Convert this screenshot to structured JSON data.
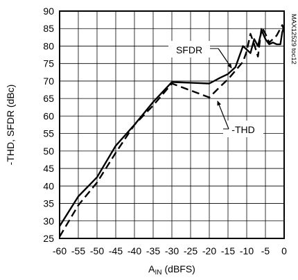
{
  "chart_data": {
    "type": "line",
    "title": "",
    "xlabel_main": "A",
    "xlabel_sub": "IN",
    "xlabel_unit": "(dBFS)",
    "ylabel": "-THD, SFDR (dBc)",
    "xlim": [
      -60,
      0
    ],
    "ylim": [
      25,
      90
    ],
    "xticks": [
      -60,
      -55,
      -50,
      -45,
      -40,
      -35,
      -30,
      -25,
      -20,
      -15,
      -10,
      -5,
      0
    ],
    "yticks": [
      25,
      30,
      35,
      40,
      45,
      50,
      55,
      60,
      65,
      70,
      75,
      80,
      85,
      90
    ],
    "grid": true,
    "legend": "none",
    "side_note": "MAX12529 toc12",
    "series": [
      {
        "name": "SFDR",
        "style": "solid",
        "x": [
          -60,
          -55,
          -50,
          -45,
          -40,
          -35,
          -30,
          -25,
          -20,
          -17,
          -15,
          -13,
          -11,
          -10,
          -9,
          -8,
          -7,
          -6,
          -5,
          -4,
          -3,
          -2,
          -1,
          -0.5,
          0
        ],
        "y": [
          28.5,
          37,
          42.5,
          51.5,
          57.5,
          64,
          69.7,
          69.5,
          69.3,
          71,
          72,
          74,
          80,
          79,
          78,
          82,
          80,
          84.5,
          82,
          80.5,
          81,
          80.5,
          80.5,
          84,
          85.5
        ]
      },
      {
        "name": "-THD",
        "style": "dashed",
        "x": [
          -60,
          -55,
          -50,
          -45,
          -40,
          -35,
          -30,
          -25,
          -20,
          -17,
          -15,
          -13,
          -11,
          -10,
          -9,
          -8,
          -7,
          -6,
          -5,
          -4,
          -3,
          -2,
          -1,
          -0.5,
          0
        ],
        "y": [
          25.5,
          34.5,
          41,
          49.5,
          57.5,
          63,
          69.3,
          67.3,
          65.3,
          68.5,
          70.5,
          73,
          75.5,
          78.5,
          83.5,
          80.5,
          77,
          85.5,
          83.5,
          81,
          82,
          83,
          85,
          86,
          84.5
        ]
      }
    ],
    "annotations": [
      {
        "text": "SFDR",
        "series": "SFDR"
      },
      {
        "text": "-THD",
        "series": "-THD"
      }
    ]
  }
}
